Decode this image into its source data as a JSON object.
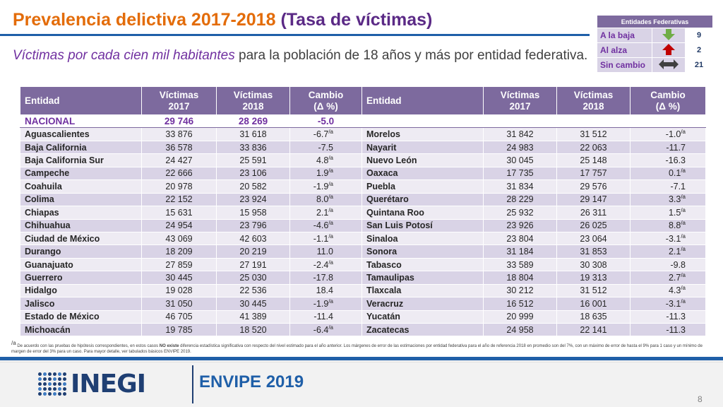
{
  "header": {
    "title_main": "Prevalencia delictiva 2017-2018 ",
    "title_sub": "(Tasa de víctimas)",
    "subtitle_italic": "Víctimas por cada cien mil habitantes",
    "subtitle_rest": " para la población de 18 años y más por entidad federativa."
  },
  "legend": {
    "header": "Entidades Federativas",
    "rows": [
      {
        "label": "A la baja",
        "icon": "arrow-down-icon",
        "color": "#70ad47",
        "value": "9"
      },
      {
        "label": "Al alza",
        "icon": "arrow-up-icon",
        "color": "#c00000",
        "value": "2"
      },
      {
        "label": "Sin cambio",
        "icon": "arrow-both-icon",
        "color": "#404040",
        "value": "21"
      }
    ]
  },
  "table": {
    "headers": {
      "entity": "Entidad",
      "v2017_a": "Víctimas",
      "v2017_b": "2017",
      "v2018_a": "Víctimas",
      "v2018_b": "2018",
      "change_a": "Cambio",
      "change_b": "(Δ %)"
    },
    "national": {
      "entity": "NACIONAL",
      "v2017": "29 746",
      "v2018": "28 269",
      "change": "-5.0"
    },
    "left": [
      {
        "entity": "Aguascalientes",
        "v2017": "33 876",
        "v2018": "31 618",
        "change": "-6.7",
        "mark": "/a"
      },
      {
        "entity": "Baja California",
        "v2017": "36 578",
        "v2018": "33 836",
        "change": "-7.5",
        "mark": ""
      },
      {
        "entity": "Baja California Sur",
        "v2017": "24 427",
        "v2018": "25 591",
        "change": "4.8",
        "mark": "/a"
      },
      {
        "entity": "Campeche",
        "v2017": "22 666",
        "v2018": "23 106",
        "change": "1.9",
        "mark": "/a"
      },
      {
        "entity": "Coahuila",
        "v2017": "20 978",
        "v2018": "20 582",
        "change": "-1.9",
        "mark": "/a"
      },
      {
        "entity": "Colima",
        "v2017": "22 152",
        "v2018": "23 924",
        "change": "8.0",
        "mark": "/a"
      },
      {
        "entity": "Chiapas",
        "v2017": "15 631",
        "v2018": "15 958",
        "change": "2.1",
        "mark": "/a"
      },
      {
        "entity": "Chihuahua",
        "v2017": "24 954",
        "v2018": "23 796",
        "change": "-4.6",
        "mark": "/a"
      },
      {
        "entity": "Ciudad de México",
        "v2017": "43 069",
        "v2018": "42 603",
        "change": "-1.1",
        "mark": "/a"
      },
      {
        "entity": "Durango",
        "v2017": "18 209",
        "v2018": "20 219",
        "change": "11.0",
        "mark": ""
      },
      {
        "entity": "Guanajuato",
        "v2017": "27 859",
        "v2018": "27 191",
        "change": "-2.4",
        "mark": "/a"
      },
      {
        "entity": "Guerrero",
        "v2017": "30 445",
        "v2018": "25 030",
        "change": "-17.8",
        "mark": ""
      },
      {
        "entity": "Hidalgo",
        "v2017": "19 028",
        "v2018": "22 536",
        "change": "18.4",
        "mark": ""
      },
      {
        "entity": "Jalisco",
        "v2017": "31 050",
        "v2018": "30 445",
        "change": "-1.9",
        "mark": "/a"
      },
      {
        "entity": "Estado de México",
        "v2017": "46 705",
        "v2018": "41 389",
        "change": "-11.4",
        "mark": ""
      },
      {
        "entity": "Michoacán",
        "v2017": "19 785",
        "v2018": "18 520",
        "change": "-6.4",
        "mark": "/a"
      }
    ],
    "right": [
      {
        "entity": "Morelos",
        "v2017": "31 842",
        "v2018": "31 512",
        "change": "-1.0",
        "mark": "/a"
      },
      {
        "entity": "Nayarit",
        "v2017": "24 983",
        "v2018": "22 063",
        "change": "-11.7",
        "mark": ""
      },
      {
        "entity": "Nuevo León",
        "v2017": "30 045",
        "v2018": "25 148",
        "change": "-16.3",
        "mark": ""
      },
      {
        "entity": "Oaxaca",
        "v2017": "17 735",
        "v2018": "17 757",
        "change": "0.1",
        "mark": "/a"
      },
      {
        "entity": "Puebla",
        "v2017": "31 834",
        "v2018": "29 576",
        "change": "-7.1",
        "mark": ""
      },
      {
        "entity": "Querétaro",
        "v2017": "28 229",
        "v2018": "29 147",
        "change": "3.3",
        "mark": "/a"
      },
      {
        "entity": "Quintana Roo",
        "v2017": "25 932",
        "v2018": "26 311",
        "change": "1.5",
        "mark": "/a"
      },
      {
        "entity": "San Luis Potosí",
        "v2017": "23 926",
        "v2018": "26 025",
        "change": "8.8",
        "mark": "/a"
      },
      {
        "entity": "Sinaloa",
        "v2017": "23 804",
        "v2018": "23 064",
        "change": "-3.1",
        "mark": "/a"
      },
      {
        "entity": "Sonora",
        "v2017": "31 184",
        "v2018": "31 853",
        "change": "2.1",
        "mark": "/a"
      },
      {
        "entity": "Tabasco",
        "v2017": "33 589",
        "v2018": "30 308",
        "change": "-9.8",
        "mark": ""
      },
      {
        "entity": "Tamaulipas",
        "v2017": "18 804",
        "v2018": "19 313",
        "change": "2.7",
        "mark": "/a"
      },
      {
        "entity": "Tlaxcala",
        "v2017": "30 212",
        "v2018": "31 512",
        "change": "4.3",
        "mark": "/a"
      },
      {
        "entity": "Veracruz",
        "v2017": "16 512",
        "v2018": "16 001",
        "change": "-3.1",
        "mark": "/a"
      },
      {
        "entity": "Yucatán",
        "v2017": "20 999",
        "v2018": "18 635",
        "change": "-11.3",
        "mark": ""
      },
      {
        "entity": "Zacatecas",
        "v2017": "24 958",
        "v2018": "22 141",
        "change": "-11.3",
        "mark": ""
      }
    ]
  },
  "footnote": {
    "mark": "/a",
    "part1": " De acuerdo con las pruebas de hipótesis correspondientes, en estos casos ",
    "bold": "NO existe",
    "part2": " diferencia estadística significativa con respecto del nivel estimado para el año anterior. Los márgenes de error de las estimaciones por entidad federativa para el año de referencia 2018 en promedio son del 7%, con un máximo de error de hasta el 9% para 1 caso y un mínimo de margen de error del 3% para un caso. Para mayor detalle, ver tabulados básicos ENVIPE 2019."
  },
  "footer": {
    "logo_text": "INEGI",
    "survey": "ENVIPE 2019",
    "page": "8"
  }
}
